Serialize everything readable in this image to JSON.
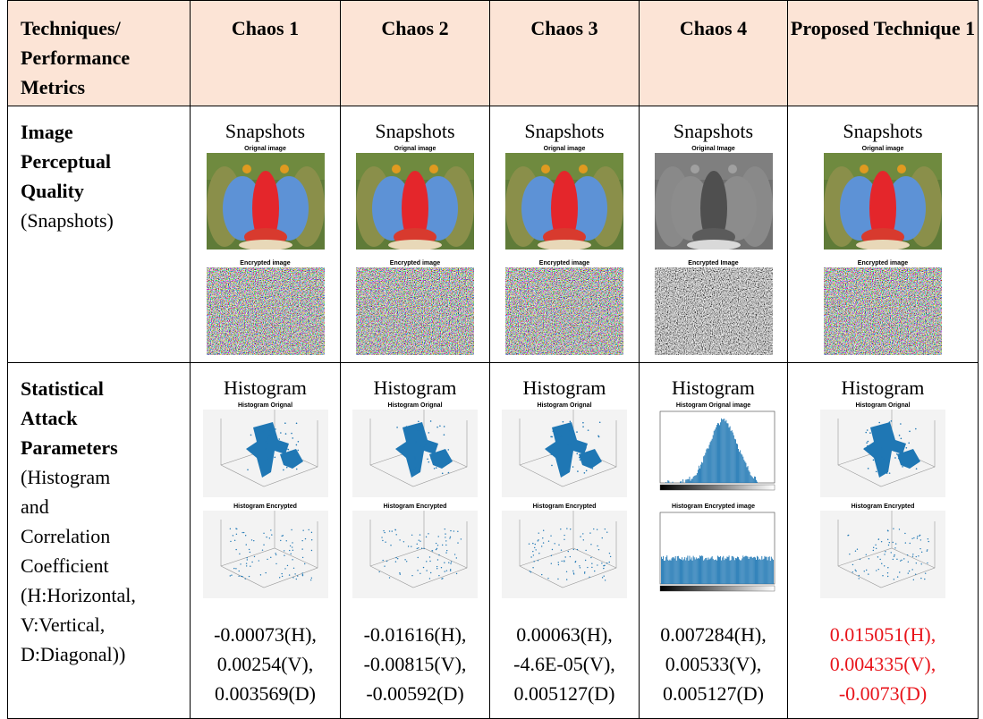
{
  "table": {
    "header": [
      "Techniques/ Performance Metrics",
      "Chaos 1",
      "Chaos 2",
      "Chaos 3",
      "Chaos 4",
      "Proposed Technique 1"
    ],
    "rows": [
      {
        "label_bold": [
          "Image",
          "Perceptual",
          "Quality"
        ],
        "label_normal": [
          "(Snapshots)"
        ],
        "cells": [
          {
            "heading": "Snapshots",
            "top_caption": "Orignal image",
            "bottom_caption": "Encrypted image"
          },
          {
            "heading": "Snapshots",
            "top_caption": "Orignal image",
            "bottom_caption": "Encrypted image"
          },
          {
            "heading": "Snapshots",
            "top_caption": "Orignal image",
            "bottom_caption": "Encrypted image"
          },
          {
            "heading": "Snapshots",
            "top_caption": "Original Image",
            "bottom_caption": "Encrypted Image"
          },
          {
            "heading": "Snapshots",
            "top_caption": "Orignal image",
            "bottom_caption": "Encrypted image"
          }
        ]
      },
      {
        "label_bold": [
          "Statistical",
          "Attack",
          "Parameters"
        ],
        "label_normal": [
          "(Histogram",
          "and",
          "Correlation",
          "Coefficient",
          "(H:Horizontal,",
          "V:Vertical,",
          "D:Diagonal))"
        ],
        "cells": [
          {
            "heading": "Histogram",
            "top_caption": "Histogram Orignal",
            "bottom_caption": "Histogram Encrypted",
            "values": [
              "-0.00073(H),",
              "0.00254(V),",
              "0.003569(D)"
            ]
          },
          {
            "heading": "Histogram",
            "top_caption": "Histogram Orignal",
            "bottom_caption": "Histogram Encrypted",
            "values": [
              "-0.01616(H),",
              "-0.00815(V),",
              "-0.00592(D)"
            ]
          },
          {
            "heading": "Histogram",
            "top_caption": "Histogram Orignal",
            "bottom_caption": "Histogram Encrypted",
            "values": [
              "0.00063(H),",
              "-4.6E-05(V),",
              "0.005127(D)"
            ]
          },
          {
            "heading": "Histogram",
            "top_caption": "Histogram Orignal image",
            "bottom_caption": "Histogram Encrypted image",
            "values": [
              "0.007284(H),",
              "0.00533(V),",
              "0.005127(D)"
            ]
          },
          {
            "heading": "Histogram",
            "top_caption": "Histogram Orignal",
            "bottom_caption": "Histogram Encrypted",
            "values": [
              "0.015051(H),",
              "0.004335(V),",
              "-0.0073(D)"
            ],
            "color": "#e8141b"
          }
        ]
      }
    ]
  }
}
